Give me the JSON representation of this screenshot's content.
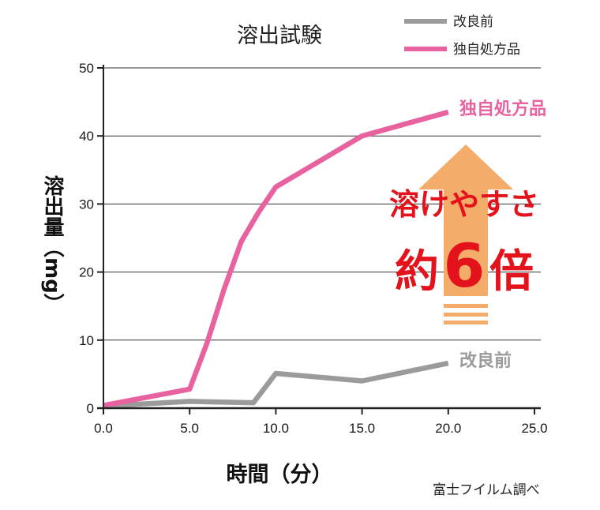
{
  "chart_data": {
    "type": "line",
    "title": "溶出試験",
    "xlabel": "時間（分）",
    "ylabel": "溶出量（mg）",
    "xlim": [
      0,
      25
    ],
    "ylim": [
      0,
      50
    ],
    "x_ticks": [
      "0.0",
      "5.0",
      "10.0",
      "15.0",
      "20.0",
      "25.0"
    ],
    "y_ticks": [
      "0",
      "10",
      "20",
      "30",
      "40",
      "50"
    ],
    "grid": "horizontal",
    "legend_position": "top-right",
    "series": [
      {
        "name": "改良前",
        "color": "#9b9b9b",
        "x": [
          0,
          5,
          8.7,
          10,
          15,
          20
        ],
        "y": [
          0.3,
          1.0,
          0.8,
          5.1,
          4.0,
          6.6
        ]
      },
      {
        "name": "独自処方品",
        "color": "#e8629f",
        "x": [
          0,
          5,
          6,
          7,
          8,
          9,
          10,
          12,
          15,
          20
        ],
        "y": [
          0.4,
          2.8,
          9.5,
          17.5,
          24.5,
          28.8,
          32.5,
          35.5,
          40.0,
          43.5
        ]
      }
    ],
    "series_labels": [
      "独自処方品",
      "改良前"
    ],
    "annotation": {
      "line1": "溶けやすさ",
      "prefix": "約",
      "number": "6",
      "suffix": "倍",
      "arrow_color": "#f4ac6a"
    },
    "source": "富士フイルム調べ"
  }
}
